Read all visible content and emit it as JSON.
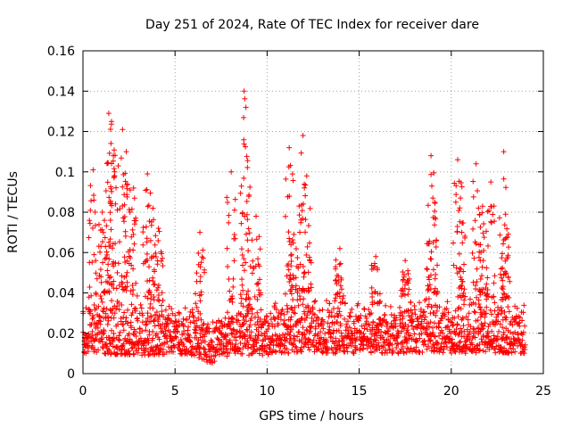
{
  "chart_data": {
    "type": "scatter",
    "title": "Day 251 of 2024, Rate Of TEC Index for receiver dare",
    "xlabel": "GPS time / hours",
    "ylabel": "ROTI / TECUs",
    "xlim": [
      0,
      25
    ],
    "ylim": [
      0,
      0.16
    ],
    "x_ticks": [
      0,
      5,
      10,
      15,
      20,
      25
    ],
    "x_tick_labels": [
      "0",
      "5",
      "10",
      "15",
      "20",
      "25"
    ],
    "y_ticks": [
      0,
      0.02,
      0.04,
      0.06,
      0.08,
      0.1,
      0.12,
      0.14,
      0.16
    ],
    "y_tick_labels": [
      "0",
      "0.02",
      "0.04",
      "0.06",
      "0.08",
      "0.1",
      "0.12",
      "0.14",
      "0.16"
    ],
    "grid": true,
    "marker": "+",
    "series": [
      {
        "name": "ROTI",
        "color": "#ff0000",
        "sample_step_hours": 0.05,
        "baseline_envelope": {
          "x": [
            0,
            1,
            2,
            3,
            4,
            5,
            6,
            6.5,
            7,
            8,
            9,
            10,
            11,
            12,
            13,
            14,
            15,
            16,
            17,
            18,
            19,
            20,
            21,
            22,
            23,
            24
          ],
          "center": [
            0.018,
            0.018,
            0.018,
            0.017,
            0.017,
            0.018,
            0.017,
            0.014,
            0.013,
            0.018,
            0.019,
            0.019,
            0.02,
            0.021,
            0.02,
            0.019,
            0.019,
            0.018,
            0.019,
            0.019,
            0.02,
            0.019,
            0.019,
            0.019,
            0.018,
            0.017
          ],
          "low": [
            0.01,
            0.01,
            0.009,
            0.009,
            0.009,
            0.01,
            0.009,
            0.006,
            0.005,
            0.009,
            0.009,
            0.009,
            0.01,
            0.011,
            0.01,
            0.01,
            0.01,
            0.01,
            0.01,
            0.01,
            0.01,
            0.01,
            0.01,
            0.01,
            0.01,
            0.01
          ],
          "high": [
            0.035,
            0.04,
            0.04,
            0.038,
            0.036,
            0.035,
            0.033,
            0.028,
            0.026,
            0.035,
            0.037,
            0.036,
            0.039,
            0.041,
            0.039,
            0.037,
            0.036,
            0.034,
            0.037,
            0.038,
            0.039,
            0.037,
            0.039,
            0.038,
            0.036,
            0.035
          ]
        },
        "peaks": [
          {
            "x": 0.55,
            "y": 0.101
          },
          {
            "x": 1.05,
            "y": 0.08
          },
          {
            "x": 1.4,
            "y": 0.129
          },
          {
            "x": 1.55,
            "y": 0.125
          },
          {
            "x": 1.65,
            "y": 0.108
          },
          {
            "x": 2.15,
            "y": 0.121
          },
          {
            "x": 2.35,
            "y": 0.11
          },
          {
            "x": 2.75,
            "y": 0.092
          },
          {
            "x": 3.5,
            "y": 0.099
          },
          {
            "x": 3.8,
            "y": 0.082
          },
          {
            "x": 4.1,
            "y": 0.072
          },
          {
            "x": 6.35,
            "y": 0.07
          },
          {
            "x": 8.05,
            "y": 0.1
          },
          {
            "x": 8.75,
            "y": 0.14
          },
          {
            "x": 8.85,
            "y": 0.132
          },
          {
            "x": 9.4,
            "y": 0.078
          },
          {
            "x": 11.2,
            "y": 0.112
          },
          {
            "x": 11.45,
            "y": 0.069
          },
          {
            "x": 11.95,
            "y": 0.118
          },
          {
            "x": 12.15,
            "y": 0.098
          },
          {
            "x": 13.95,
            "y": 0.062
          },
          {
            "x": 15.9,
            "y": 0.058
          },
          {
            "x": 17.5,
            "y": 0.056
          },
          {
            "x": 18.9,
            "y": 0.108
          },
          {
            "x": 19.0,
            "y": 0.087
          },
          {
            "x": 20.35,
            "y": 0.106
          },
          {
            "x": 20.5,
            "y": 0.087
          },
          {
            "x": 21.35,
            "y": 0.104
          },
          {
            "x": 21.7,
            "y": 0.083
          },
          {
            "x": 22.15,
            "y": 0.095
          },
          {
            "x": 22.85,
            "y": 0.11
          },
          {
            "x": 22.95,
            "y": 0.079
          }
        ]
      }
    ]
  }
}
